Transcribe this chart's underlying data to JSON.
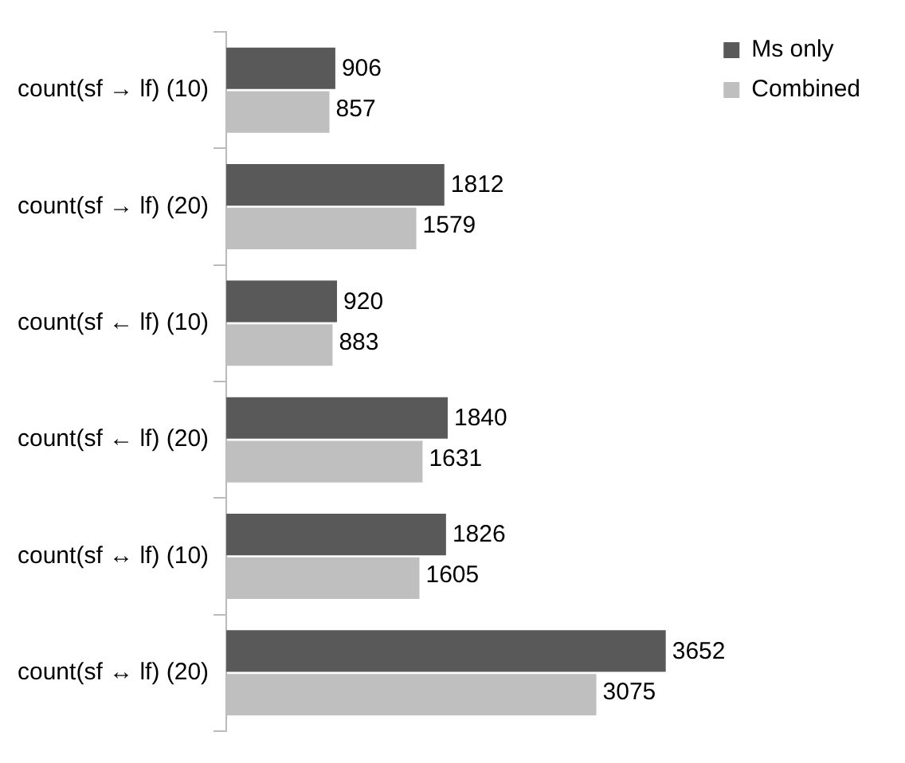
{
  "chart_data": {
    "type": "bar",
    "orientation": "horizontal",
    "tick_labels": "y",
    "data_labels": true,
    "legend": "top right",
    "categories": [
      "count(sf → lf) (10)",
      "count(sf → lf) (20)",
      "count(sf ← lf) (10)",
      "count(sf ← lf) (20)",
      "count(sf ↔ lf) (10)",
      "count(sf ↔ lf) (20)"
    ],
    "series": [
      {
        "name": "Ms only",
        "color": "#595959",
        "values": [
          906,
          1812,
          920,
          1840,
          1826,
          3652
        ]
      },
      {
        "name": "Combined",
        "color": "#bfbfbf",
        "values": [
          857,
          1579,
          883,
          1631,
          1605,
          3075
        ]
      }
    ]
  }
}
